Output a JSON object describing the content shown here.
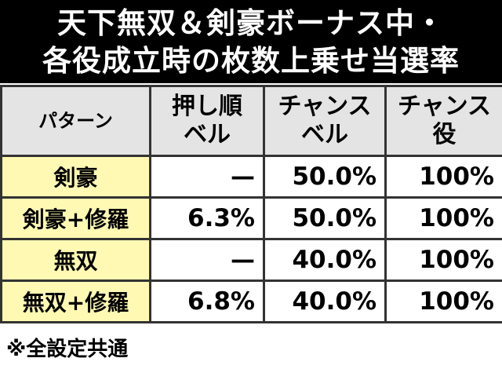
{
  "header": {
    "title": [
      "天下無双＆剣豪ボーナス中・",
      "各役成立時の枚数上乗せ当選率"
    ]
  },
  "table": {
    "columns": [
      "パターン",
      "押し順\nベル",
      "チャンス\nベル",
      "チャンス\n役"
    ],
    "rows": [
      [
        "剣豪",
        "—",
        "50.0%",
        "100%"
      ],
      [
        "剣豪+修羅",
        "6.3%",
        "50.0%",
        "100%"
      ],
      [
        "無双",
        "—",
        "40.0%",
        "100%"
      ],
      [
        "無双+修羅",
        "6.8%",
        "40.0%",
        "100%"
      ]
    ]
  },
  "footer": {
    "note": "※全設定共通"
  }
}
